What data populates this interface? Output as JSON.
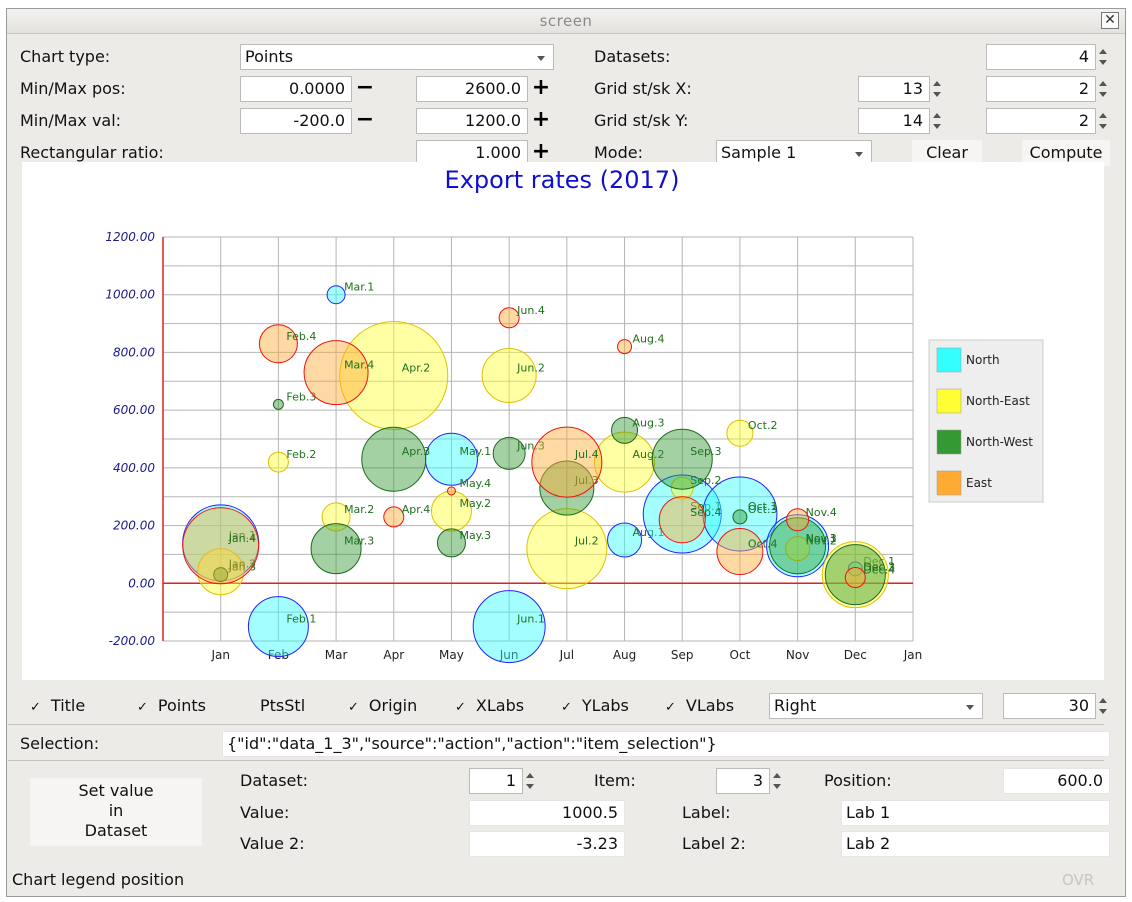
{
  "window": {
    "title": "screen",
    "close_icon": "close-icon"
  },
  "controls": {
    "chart_type_label": "Chart type:",
    "chart_type_value": "Points",
    "minmax_pos_label": "Min/Max pos:",
    "min_pos": "0.0000",
    "max_pos": "2600.0",
    "minmax_val_label": "Min/Max val:",
    "min_val": "-200.0",
    "max_val": "1200.0",
    "rect_ratio_label": "Rectangular ratio:",
    "rect_ratio": "1.000",
    "datasets_label": "Datasets:",
    "datasets_value": "4",
    "grid_x_label": "Grid st/sk X:",
    "grid_x_st": "13",
    "grid_x_sk": "2",
    "grid_y_label": "Grid st/sk Y:",
    "grid_y_st": "14",
    "grid_y_sk": "2",
    "mode_label": "Mode:",
    "mode_value": "Sample 1",
    "clear_label": "Clear",
    "compute_label": "Compute",
    "minus_glyph": "−",
    "plus_glyph": "+"
  },
  "toggles": {
    "check_glyph": "✓",
    "title": "Title",
    "points": "Points",
    "ptsstl": "PtsStl",
    "origin": "Origin",
    "xlabs": "XLabs",
    "ylabs": "YLabs",
    "vlabs": "VLabs",
    "legend_pos": "Right",
    "legend_size": "30"
  },
  "selection": {
    "label": "Selection:",
    "value": "{\"id\":\"data_1_3\",\"source\":\"action\",\"action\":\"item_selection\"}"
  },
  "editor": {
    "set_value_line1": "Set value",
    "set_value_line2": "in",
    "set_value_line3": "Dataset",
    "dataset_label": "Dataset:",
    "dataset_value": "1",
    "item_label": "Item:",
    "item_value": "3",
    "position_label": "Position:",
    "position_value": "600.0",
    "value_label": "Value:",
    "value_value": "1000.5",
    "label_label": "Label:",
    "label_value": "Lab 1",
    "value2_label": "Value 2:",
    "value2_value": "-3.23",
    "label2_label": "Label 2:",
    "label2_value": "Lab 2"
  },
  "status": {
    "text": "Chart legend position",
    "mode": "OVR"
  },
  "chart_data": {
    "type": "scatter",
    "title": "Export rates (2017)",
    "title_color": "#1010cc",
    "ylim": [
      -200,
      1200
    ],
    "yticks": [
      "1200.00",
      "1000.00",
      "800.00",
      "600.00",
      "400.00",
      "200.00",
      "0.00",
      "-200.00"
    ],
    "xticks": [
      "Jan",
      "Feb",
      "Mar",
      "Apr",
      "May",
      "Jun",
      "Jul",
      "Aug",
      "Sep",
      "Oct",
      "Nov",
      "Dec",
      "Jan"
    ],
    "grid": true,
    "legend_position": "right",
    "series": [
      {
        "name": "North",
        "fill": "#33ffff",
        "stroke": "#2222ff",
        "points": [
          {
            "m": 0,
            "y": 140,
            "r": 38,
            "label": "Jan.1"
          },
          {
            "m": 1,
            "y": -150,
            "r": 30,
            "label": "Feb.1"
          },
          {
            "m": 2,
            "y": 1000,
            "r": 9,
            "label": "Mar.1"
          },
          {
            "m": 4,
            "y": 430,
            "r": 26,
            "label": "May.1"
          },
          {
            "m": 5,
            "y": -150,
            "r": 36,
            "label": "Jun.1"
          },
          {
            "m": 7,
            "y": 150,
            "r": 17,
            "label": "Aug.1"
          },
          {
            "m": 8,
            "y": 240,
            "r": 39,
            "label": "Sep.1"
          },
          {
            "m": 9,
            "y": 240,
            "r": 37,
            "label": "Oct.1"
          },
          {
            "m": 10,
            "y": 130,
            "r": 31,
            "label": "Nov.1"
          },
          {
            "m": 11,
            "y": 50,
            "r": 7,
            "label": "Dec.1"
          }
        ]
      },
      {
        "name": "North-East",
        "fill": "#ffff33",
        "stroke": "#e0c000",
        "points": [
          {
            "m": 0,
            "y": 40,
            "r": 23,
            "label": "Jan.2"
          },
          {
            "m": 1,
            "y": 420,
            "r": 10,
            "label": "Feb.2"
          },
          {
            "m": 2,
            "y": 230,
            "r": 14,
            "label": "Mar.2"
          },
          {
            "m": 3,
            "y": 720,
            "r": 54,
            "label": "Apr.2"
          },
          {
            "m": 4,
            "y": 250,
            "r": 20,
            "label": "May.2"
          },
          {
            "m": 5,
            "y": 720,
            "r": 27,
            "label": "Jun.2"
          },
          {
            "m": 6,
            "y": 120,
            "r": 40,
            "label": "Jul.2"
          },
          {
            "m": 7,
            "y": 420,
            "r": 30,
            "label": "Aug.2"
          },
          {
            "m": 8,
            "y": 330,
            "r": 11,
            "label": "Sep.2"
          },
          {
            "m": 9,
            "y": 520,
            "r": 13,
            "label": "Oct.2"
          },
          {
            "m": 10,
            "y": 120,
            "r": 12,
            "label": "Nov.2"
          },
          {
            "m": 11,
            "y": 30,
            "r": 33,
            "label": "Dec.2"
          }
        ]
      },
      {
        "name": "North-West",
        "fill": "#339933",
        "stroke": "#1c6a1c",
        "points": [
          {
            "m": 0,
            "y": 30,
            "r": 7,
            "label": "Jan.3"
          },
          {
            "m": 1,
            "y": 620,
            "r": 5,
            "label": "Feb.3"
          },
          {
            "m": 2,
            "y": 120,
            "r": 25,
            "label": "Mar.3"
          },
          {
            "m": 3,
            "y": 430,
            "r": 32,
            "label": "Apr.3"
          },
          {
            "m": 4,
            "y": 140,
            "r": 14,
            "label": "May.3"
          },
          {
            "m": 5,
            "y": 450,
            "r": 16,
            "label": "Jun.3"
          },
          {
            "m": 6,
            "y": 330,
            "r": 27,
            "label": "Jul.3"
          },
          {
            "m": 7,
            "y": 530,
            "r": 13,
            "label": "Aug.3"
          },
          {
            "m": 8,
            "y": 430,
            "r": 30,
            "label": "Sep.3"
          },
          {
            "m": 9,
            "y": 230,
            "r": 7,
            "label": "Oct.3"
          },
          {
            "m": 10,
            "y": 130,
            "r": 28,
            "label": "Nov.3"
          },
          {
            "m": 11,
            "y": 30,
            "r": 30,
            "label": "Dec.3"
          }
        ]
      },
      {
        "name": "East",
        "fill": "#ffaa33",
        "stroke": "#ee1111",
        "points": [
          {
            "m": 0,
            "y": 130,
            "r": 38,
            "label": "Jan.4"
          },
          {
            "m": 1,
            "y": 830,
            "r": 19,
            "label": "Feb.4"
          },
          {
            "m": 2,
            "y": 730,
            "r": 32,
            "label": "Mar.4"
          },
          {
            "m": 3,
            "y": 230,
            "r": 10,
            "label": "Apr.4"
          },
          {
            "m": 4,
            "y": 320,
            "r": 4,
            "label": "May.4"
          },
          {
            "m": 5,
            "y": 920,
            "r": 10,
            "label": "Jun.4"
          },
          {
            "m": 6,
            "y": 420,
            "r": 35,
            "label": "Jul.4"
          },
          {
            "m": 7,
            "y": 820,
            "r": 7,
            "label": "Aug.4"
          },
          {
            "m": 8,
            "y": 220,
            "r": 23,
            "label": "Sep.4"
          },
          {
            "m": 9,
            "y": 110,
            "r": 23,
            "label": "Oct.4"
          },
          {
            "m": 10,
            "y": 220,
            "r": 11,
            "label": "Nov.4"
          },
          {
            "m": 11,
            "y": 20,
            "r": 10,
            "label": "Dec.4"
          }
        ]
      }
    ]
  }
}
